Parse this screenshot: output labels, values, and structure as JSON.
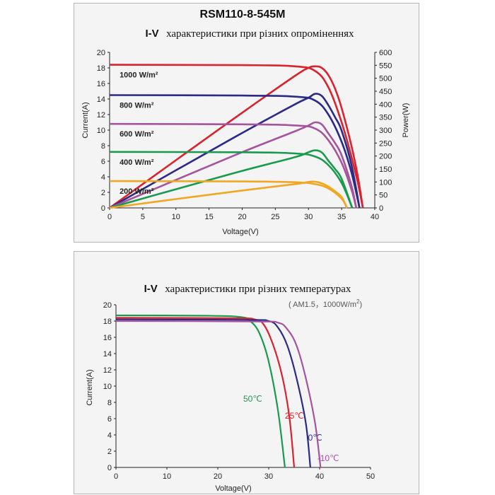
{
  "chart_data": [
    {
      "type": "line",
      "title": "RSM110-8-545M",
      "subtitle_prefix": "I-V",
      "subtitle_text": "характеристики при різних опроміненнях",
      "xlabel": "Voltage(V)",
      "ylabel": "Current(A)",
      "y2label": "Power(W)",
      "xlim": [
        0,
        40
      ],
      "ylim": [
        0,
        20
      ],
      "y2lim": [
        0,
        600
      ],
      "xticks": [
        "0",
        "5",
        "10",
        "15",
        "20",
        "25",
        "30",
        "35",
        "40"
      ],
      "yticks": [
        "0",
        "2",
        "4",
        "6",
        "8",
        "10",
        "12",
        "14",
        "16",
        "18",
        "20"
      ],
      "y2ticks": [
        "0",
        "50",
        "100",
        "150",
        "200",
        "250",
        "300",
        "350",
        "400",
        "450",
        "500",
        "550",
        "600"
      ],
      "grid": false,
      "series": [
        {
          "name": "1000 W/m²",
          "color": "#d9232e",
          "iv": [
            [
              0,
              18.4
            ],
            [
              20,
              18.35
            ],
            [
              28,
              18.2
            ],
            [
              31,
              17.6
            ],
            [
              33,
              15.5
            ],
            [
              35,
              11.0
            ],
            [
              36.5,
              6.5
            ],
            [
              37.5,
              3.0
            ],
            [
              38.2,
              0
            ]
          ],
          "pv": [
            [
              0,
              0
            ],
            [
              10,
              184
            ],
            [
              20,
              367
            ],
            [
              28,
              510
            ],
            [
              30,
              540
            ],
            [
              31,
              546
            ],
            [
              32,
              540
            ],
            [
              33,
              512
            ],
            [
              34,
              460
            ],
            [
              35,
              385
            ],
            [
              36.5,
              237
            ],
            [
              37.5,
              113
            ],
            [
              38.2,
              0
            ]
          ]
        },
        {
          "name": "800 W/m²",
          "color": "#2b2b86",
          "iv": [
            [
              0,
              14.5
            ],
            [
              20,
              14.45
            ],
            [
              28,
              14.3
            ],
            [
              31,
              13.8
            ],
            [
              33,
              12.0
            ],
            [
              35,
              8.5
            ],
            [
              36.5,
              4.5
            ],
            [
              37.7,
              0
            ]
          ],
          "pv": [
            [
              0,
              0
            ],
            [
              10,
              145
            ],
            [
              20,
              289
            ],
            [
              28,
              400
            ],
            [
              30,
              425
            ],
            [
              31,
              440
            ],
            [
              32,
              432
            ],
            [
              33,
              396
            ],
            [
              34,
              350
            ],
            [
              35,
              298
            ],
            [
              36.5,
              164
            ],
            [
              37.7,
              0
            ]
          ]
        },
        {
          "name": "600 W/m²",
          "color": "#a5549e",
          "iv": [
            [
              0,
              10.8
            ],
            [
              20,
              10.75
            ],
            [
              28,
              10.6
            ],
            [
              31,
              10.2
            ],
            [
              33,
              8.7
            ],
            [
              35,
              5.8
            ],
            [
              36.5,
              2.3
            ],
            [
              37.2,
              0
            ]
          ],
          "pv": [
            [
              0,
              0
            ],
            [
              10,
              108
            ],
            [
              20,
              215
            ],
            [
              28,
              296
            ],
            [
              30,
              318
            ],
            [
              31,
              330
            ],
            [
              32,
              322
            ],
            [
              33,
              287
            ],
            [
              34,
              250
            ],
            [
              35,
              203
            ],
            [
              36.5,
              84
            ],
            [
              37.2,
              0
            ]
          ]
        },
        {
          "name": "400 W/m²",
          "color": "#1b9a4f",
          "iv": [
            [
              0,
              7.2
            ],
            [
              20,
              7.15
            ],
            [
              28,
              7.0
            ],
            [
              31,
              6.6
            ],
            [
              33,
              5.5
            ],
            [
              35,
              3.2
            ],
            [
              36.6,
              0
            ]
          ],
          "pv": [
            [
              0,
              0
            ],
            [
              10,
              72
            ],
            [
              20,
              143
            ],
            [
              28,
              196
            ],
            [
              30,
              215
            ],
            [
              31,
              222
            ],
            [
              32,
              214
            ],
            [
              33,
              182
            ],
            [
              34,
              150
            ],
            [
              35,
              112
            ],
            [
              36.6,
              0
            ]
          ]
        },
        {
          "name": "200 W/m²",
          "color": "#f0a824",
          "iv": [
            [
              0,
              3.45
            ],
            [
              20,
              3.4
            ],
            [
              28,
              3.3
            ],
            [
              31,
              3.05
            ],
            [
              33,
              2.5
            ],
            [
              35,
              1.2
            ],
            [
              35.8,
              0
            ]
          ],
          "pv": [
            [
              0,
              0
            ],
            [
              10,
              34
            ],
            [
              20,
              67
            ],
            [
              28,
              92
            ],
            [
              30,
              100
            ],
            [
              31,
              101
            ],
            [
              32,
              95
            ],
            [
              33,
              82
            ],
            [
              34,
              64
            ],
            [
              35,
              42
            ],
            [
              35.8,
              0
            ]
          ]
        }
      ]
    },
    {
      "type": "line",
      "subtitle_prefix": "I-V",
      "subtitle_text": "характеристики при різних температурах",
      "condition": "( AM1.5，1000W/m",
      "condition_sup": "2",
      "condition_end": ")",
      "xlabel": "Voltage(V)",
      "ylabel": "Current(A)",
      "xlim": [
        0,
        55
      ],
      "ylim": [
        0,
        20
      ],
      "xticks": [
        "0",
        "10",
        "20",
        "30",
        "40",
        "50"
      ],
      "yticks": [
        "0",
        "2",
        "4",
        "6",
        "8",
        "10",
        "12",
        "14",
        "16",
        "18",
        "20"
      ],
      "grid": false,
      "series": [
        {
          "name": "50℃",
          "color": "#1b9a4f",
          "iv": [
            [
              0,
              18.7
            ],
            [
              20,
              18.65
            ],
            [
              27,
              18.5
            ],
            [
              29,
              18.0
            ],
            [
              31,
              16.5
            ],
            [
              33,
              13.0
            ],
            [
              35,
              7.0
            ],
            [
              36.5,
              0
            ]
          ]
        },
        {
          "name": "25℃",
          "color": "#d9232e",
          "iv": [
            [
              0,
              18.4
            ],
            [
              25,
              18.35
            ],
            [
              30,
              18.2
            ],
            [
              32,
              17.5
            ],
            [
              34,
              15.0
            ],
            [
              36,
              11.0
            ],
            [
              37.5,
              6.0
            ],
            [
              38.5,
              0
            ]
          ]
        },
        {
          "name": "0℃",
          "color": "#2b2b86",
          "iv": [
            [
              0,
              18.2
            ],
            [
              28,
              18.15
            ],
            [
              33,
              18.0
            ],
            [
              35,
              17.2
            ],
            [
              37,
              15.0
            ],
            [
              39,
              11.0
            ],
            [
              41,
              5.5
            ],
            [
              42,
              0
            ]
          ]
        },
        {
          "name": "-10℃",
          "color": "#a5549e",
          "iv": [
            [
              0,
              18.0
            ],
            [
              30,
              17.95
            ],
            [
              35,
              17.8
            ],
            [
              37,
              17.0
            ],
            [
              39,
              15.0
            ],
            [
              41,
              11.0
            ],
            [
              43,
              5.5
            ],
            [
              44.2,
              0
            ]
          ]
        }
      ]
    }
  ]
}
